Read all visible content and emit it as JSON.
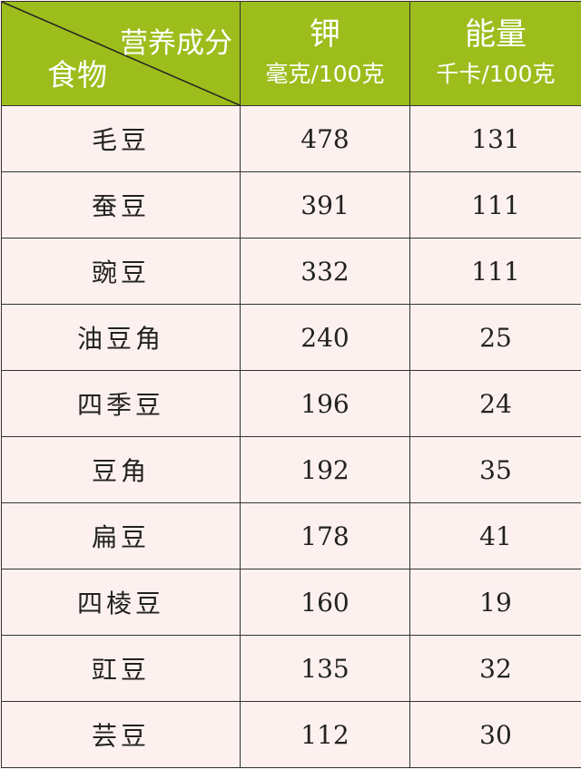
{
  "header": {
    "corner_top": "营养成分",
    "corner_bottom": "食物",
    "col1_title": "钾",
    "col1_unit": "毫克/100克",
    "col2_title": "能量",
    "col2_unit": "千卡/100克"
  },
  "colors": {
    "header_bg": "#9dbd1c",
    "body_bg": "#fdf1ef"
  },
  "rows": [
    {
      "food": "毛豆",
      "potassium": "478",
      "energy": "131"
    },
    {
      "food": "蚕豆",
      "potassium": "391",
      "energy": "111"
    },
    {
      "food": "豌豆",
      "potassium": "332",
      "energy": "111"
    },
    {
      "food": "油豆角",
      "potassium": "240",
      "energy": "25"
    },
    {
      "food": "四季豆",
      "potassium": "196",
      "energy": "24"
    },
    {
      "food": "豆角",
      "potassium": "192",
      "energy": "35"
    },
    {
      "food": "扁豆",
      "potassium": "178",
      "energy": "41"
    },
    {
      "food": "四棱豆",
      "potassium": "160",
      "energy": "19"
    },
    {
      "food": "豇豆",
      "potassium": "135",
      "energy": "32"
    },
    {
      "food": "芸豆",
      "potassium": "112",
      "energy": "30"
    }
  ]
}
